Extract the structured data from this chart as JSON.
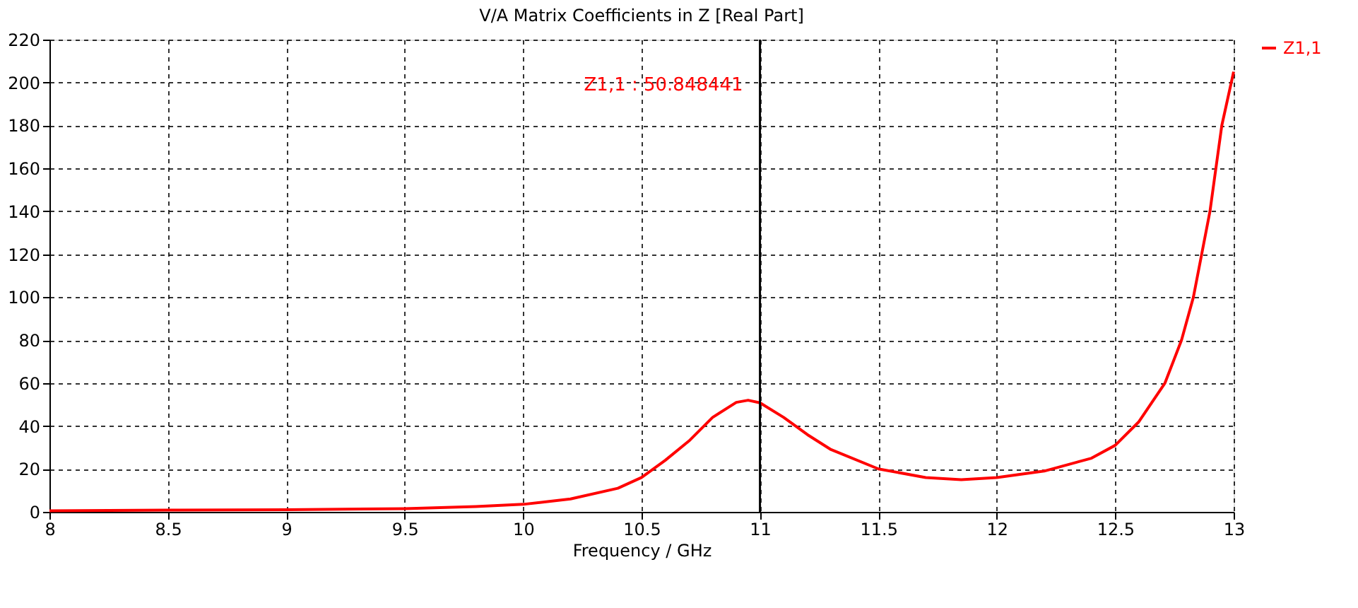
{
  "chart_data": {
    "type": "line",
    "title": "V/A Matrix Coefficients in Z [Real Part]",
    "xlabel": "Frequency / GHz",
    "x": [
      8,
      8.5,
      9,
      9.5,
      9.8,
      10,
      10.2,
      10.4,
      10.5,
      10.6,
      10.7,
      10.8,
      10.9,
      10.95,
      11,
      11.1,
      11.2,
      11.3,
      11.5,
      11.7,
      11.85,
      12,
      12.2,
      12.4,
      12.5,
      12.6,
      12.71,
      12.78,
      12.83,
      12.9,
      12.95,
      13
    ],
    "series": [
      {
        "name": "Z1,1",
        "color": "#ff0000",
        "values": [
          0.5,
          0.8,
          1,
          1.5,
          2.5,
          3.5,
          6,
          11,
          16,
          24,
          33,
          44,
          51,
          52,
          50.8,
          44,
          36,
          29,
          20,
          16,
          15,
          16,
          19,
          25,
          31,
          42,
          60,
          80,
          100,
          140,
          180,
          205
        ]
      }
    ],
    "xlim": [
      8,
      13
    ],
    "xticks": [
      8,
      8.5,
      9,
      9.5,
      10,
      10.5,
      11,
      11.5,
      12,
      12.5,
      13
    ],
    "ylim": [
      0,
      220
    ],
    "yticks": [
      0,
      20,
      40,
      60,
      80,
      100,
      120,
      140,
      160,
      180,
      200,
      220
    ],
    "ref_lines": [
      {
        "axis": "x",
        "value": 11,
        "color": "#000000"
      }
    ],
    "annotations": [
      {
        "text": "Z1,1 : 50.848441",
        "x": 11
      }
    ],
    "grid": true,
    "legend": "top right",
    "line_style": "solid",
    "marker": "none"
  }
}
